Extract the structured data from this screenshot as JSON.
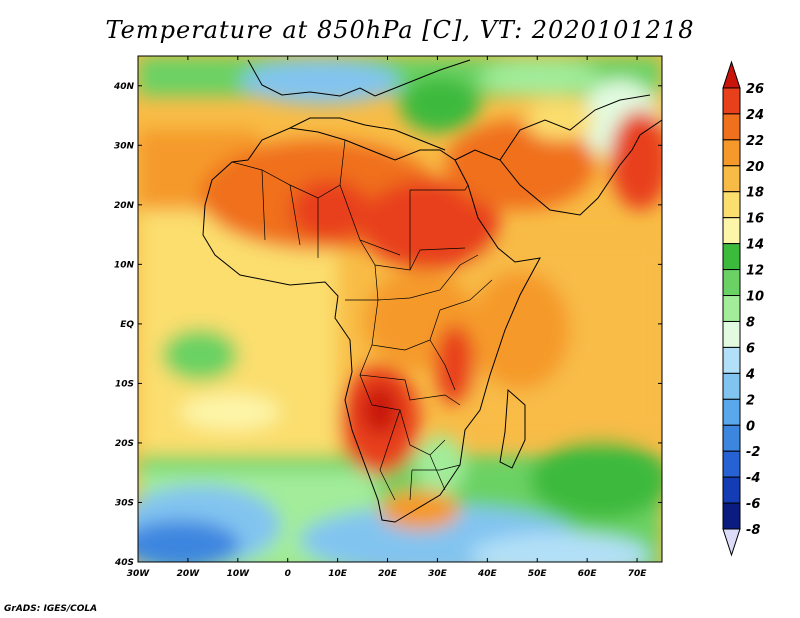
{
  "title": "Temperature at 850hPa [C], VT: 2020101218",
  "credit": "GrADS: IGES/COLA",
  "map": {
    "lon_range": [
      -30,
      75
    ],
    "lat_range": [
      -40,
      45
    ],
    "lon_ticks": [
      {
        "lon": -30,
        "label": "30W"
      },
      {
        "lon": -20,
        "label": "20W"
      },
      {
        "lon": -10,
        "label": "10W"
      },
      {
        "lon": 0,
        "label": "0"
      },
      {
        "lon": 10,
        "label": "10E"
      },
      {
        "lon": 20,
        "label": "20E"
      },
      {
        "lon": 30,
        "label": "30E"
      },
      {
        "lon": 40,
        "label": "40E"
      },
      {
        "lon": 50,
        "label": "50E"
      },
      {
        "lon": 60,
        "label": "60E"
      },
      {
        "lon": 70,
        "label": "70E"
      }
    ],
    "lat_ticks": [
      {
        "lat": 40,
        "label": "40N"
      },
      {
        "lat": 30,
        "label": "30N"
      },
      {
        "lat": 20,
        "label": "20N"
      },
      {
        "lat": 10,
        "label": "10N"
      },
      {
        "lat": 0,
        "label": "EQ"
      },
      {
        "lat": -10,
        "label": "10S"
      },
      {
        "lat": -20,
        "label": "20S"
      },
      {
        "lat": -30,
        "label": "30S"
      },
      {
        "lat": -40,
        "label": "40S"
      }
    ]
  },
  "colorbar": {
    "levels": [
      {
        "label": "26",
        "color": "#c8140a"
      },
      {
        "label": "24",
        "color": "#e8401a"
      },
      {
        "label": "22",
        "color": "#f0701e"
      },
      {
        "label": "20",
        "color": "#f59a2a"
      },
      {
        "label": "18",
        "color": "#f8bc46"
      },
      {
        "label": "16",
        "color": "#fbde6e"
      },
      {
        "label": "14",
        "color": "#fdf5a8"
      },
      {
        "label": "12",
        "color": "#3cba3c"
      },
      {
        "label": "10",
        "color": "#6ad264"
      },
      {
        "label": "8",
        "color": "#a2ec9a"
      },
      {
        "label": "6",
        "color": "#e2fbe0"
      },
      {
        "label": "4",
        "color": "#b2e0f8"
      },
      {
        "label": "2",
        "color": "#82c4f0"
      },
      {
        "label": "0",
        "color": "#5aa8ec"
      },
      {
        "label": "-2",
        "color": "#3c86e0"
      },
      {
        "label": "-4",
        "color": "#2662d4"
      },
      {
        "label": "-6",
        "color": "#143cb4"
      },
      {
        "label": "-8",
        "color": "#0a1c80"
      }
    ],
    "bottom_color": "#dcdcf8"
  }
}
